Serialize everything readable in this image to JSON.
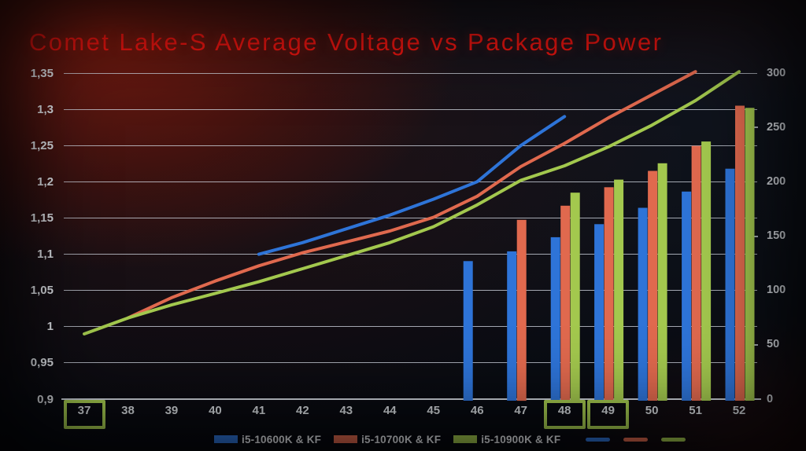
{
  "title": "Comet Lake-S Average Voltage vs Package Power",
  "colors": {
    "title": "#ee1510",
    "blue": "#2e74d8",
    "red": "#e0694e",
    "green": "#a3c84e",
    "grid": "#ced4de",
    "axis_text": "#e4e7ec",
    "highlight_box": "#a4c94f"
  },
  "chart_data": {
    "type": "combo",
    "description": "Dual-axis chart: curved lines plot average voltage against the left axis; bars plot package power against the right axis, per CPU core multiplier.",
    "x_categories": [
      "37",
      "38",
      "39",
      "40",
      "41",
      "42",
      "43",
      "44",
      "45",
      "46",
      "47",
      "48",
      "49",
      "50",
      "51",
      "52"
    ],
    "x_highlighted": [
      "37",
      "48",
      "49"
    ],
    "left_axis": {
      "represents": "average voltage",
      "min": 0.9,
      "max": 1.35,
      "ticks": [
        {
          "label": "1,35",
          "value": 1.35
        },
        {
          "label": "1,3",
          "value": 1.3
        },
        {
          "label": "1,25",
          "value": 1.25
        },
        {
          "label": "1,2",
          "value": 1.2
        },
        {
          "label": "1,15",
          "value": 1.15
        },
        {
          "label": "1,1",
          "value": 1.1
        },
        {
          "label": "1,05",
          "value": 1.05
        },
        {
          "label": "1",
          "value": 1.0
        },
        {
          "label": "0,95",
          "value": 0.95
        },
        {
          "label": "0,9",
          "value": 0.9
        }
      ]
    },
    "right_axis": {
      "represents": "package power",
      "min": 0,
      "max": 300,
      "ticks": [
        {
          "label": "300",
          "value": 300
        },
        {
          "label": "250",
          "value": 250
        },
        {
          "label": "200",
          "value": 200
        },
        {
          "label": "150",
          "value": 150
        },
        {
          "label": "100",
          "value": 100
        },
        {
          "label": "50",
          "value": 50
        },
        {
          "label": "0",
          "value": 0
        }
      ],
      "midticks": [
        250,
        150,
        50
      ]
    },
    "series": [
      {
        "name": "i5-10600K & KF",
        "kind": "bar",
        "axis": "right",
        "color_key": "blue",
        "points": [
          [
            "46",
            127
          ],
          [
            "47",
            136
          ],
          [
            "48",
            149
          ],
          [
            "49",
            161
          ],
          [
            "50",
            176
          ],
          [
            "51",
            191
          ],
          [
            "52",
            212
          ]
        ]
      },
      {
        "name": "i5-10700K & KF",
        "kind": "bar",
        "axis": "right",
        "color_key": "red",
        "points": [
          [
            "47",
            165
          ],
          [
            "48",
            178
          ],
          [
            "49",
            195
          ],
          [
            "50",
            210
          ],
          [
            "51",
            233
          ],
          [
            "52",
            270
          ]
        ]
      },
      {
        "name": "i5-10900K & KF",
        "kind": "bar",
        "axis": "right",
        "color_key": "green",
        "points": [
          [
            "48",
            190
          ],
          [
            "49",
            202
          ],
          [
            "50",
            217
          ],
          [
            "51",
            237
          ],
          [
            "52",
            268
          ]
        ]
      },
      {
        "name": "i5-10600K & KF",
        "kind": "line",
        "axis": "left",
        "color_key": "blue",
        "points": [
          [
            "41",
            1.1
          ],
          [
            "42",
            1.116
          ],
          [
            "43",
            1.135
          ],
          [
            "44",
            1.154
          ],
          [
            "45",
            1.176
          ],
          [
            "46",
            1.2
          ],
          [
            "47",
            1.25
          ],
          [
            "48",
            1.29
          ]
        ]
      },
      {
        "name": "i5-10700K & KF",
        "kind": "line",
        "axis": "left",
        "color_key": "red",
        "points": [
          [
            "38",
            1.012
          ],
          [
            "39",
            1.04
          ],
          [
            "40",
            1.063
          ],
          [
            "41",
            1.084
          ],
          [
            "42",
            1.102
          ],
          [
            "43",
            1.117
          ],
          [
            "44",
            1.132
          ],
          [
            "45",
            1.151
          ],
          [
            "46",
            1.18
          ],
          [
            "47",
            1.221
          ],
          [
            "48",
            1.253
          ],
          [
            "49",
            1.288
          ],
          [
            "50",
            1.32
          ],
          [
            "51",
            1.352
          ]
        ]
      },
      {
        "name": "i5-10900K & KF",
        "kind": "line",
        "axis": "left",
        "color_key": "green",
        "points": [
          [
            "37",
            0.99
          ],
          [
            "38",
            1.012
          ],
          [
            "39",
            1.03
          ],
          [
            "40",
            1.046
          ],
          [
            "41",
            1.062
          ],
          [
            "42",
            1.08
          ],
          [
            "43",
            1.098
          ],
          [
            "44",
            1.116
          ],
          [
            "45",
            1.138
          ],
          [
            "46",
            1.168
          ],
          [
            "47",
            1.202
          ],
          [
            "48",
            1.222
          ],
          [
            "49",
            1.248
          ],
          [
            "50",
            1.278
          ],
          [
            "51",
            1.312
          ],
          [
            "52",
            1.352
          ]
        ]
      }
    ]
  },
  "legend": {
    "entries": [
      {
        "swatch": "bar",
        "color_key": "blue",
        "label": "i5-10600K & KF"
      },
      {
        "swatch": "bar",
        "color_key": "red",
        "label": "i5-10700K & KF"
      },
      {
        "swatch": "bar",
        "color_key": "green",
        "label": "i5-10900K & KF"
      },
      {
        "swatch": "line",
        "color_key": "blue",
        "label": ""
      },
      {
        "swatch": "line",
        "color_key": "red",
        "label": ""
      },
      {
        "swatch": "line",
        "color_key": "green",
        "label": ""
      }
    ]
  }
}
